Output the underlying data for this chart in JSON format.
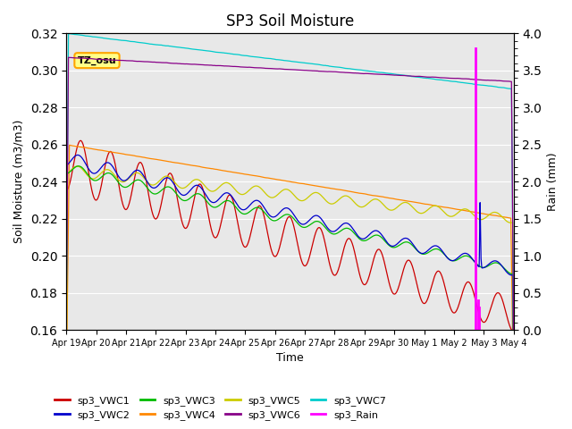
{
  "title": "SP3 Soil Moisture",
  "xlabel": "Time",
  "ylabel_left": "Soil Moisture (m3/m3)",
  "ylabel_right": "Rain (mm)",
  "ylim_left": [
    0.16,
    0.32
  ],
  "ylim_right": [
    0.0,
    4.0
  ],
  "yticks_left": [
    0.16,
    0.18,
    0.2,
    0.22,
    0.24,
    0.26,
    0.28,
    0.3,
    0.32
  ],
  "yticks_right": [
    0.0,
    0.5,
    1.0,
    1.5,
    2.0,
    2.5,
    3.0,
    3.5,
    4.0
  ],
  "background_color": "#e8e8e8",
  "series_colors": {
    "sp3_VWC1": "#cc0000",
    "sp3_VWC2": "#0000cc",
    "sp3_VWC3": "#00bb00",
    "sp3_VWC4": "#ff8800",
    "sp3_VWC5": "#cccc00",
    "sp3_VWC6": "#880088",
    "sp3_VWC7": "#00cccc",
    "sp3_Rain": "#ff00ff"
  },
  "tz_label": "TZ_osu",
  "n_points": 1440,
  "day_labels": [
    "Apr 19",
    "Apr 20",
    "Apr 21",
    "Apr 22",
    "Apr 23",
    "Apr 24",
    "Apr 25",
    "Apr 26",
    "Apr 27",
    "Apr 28",
    "Apr 29",
    "Apr 30",
    "May 1",
    "May 2",
    "May 3",
    "May 4"
  ]
}
